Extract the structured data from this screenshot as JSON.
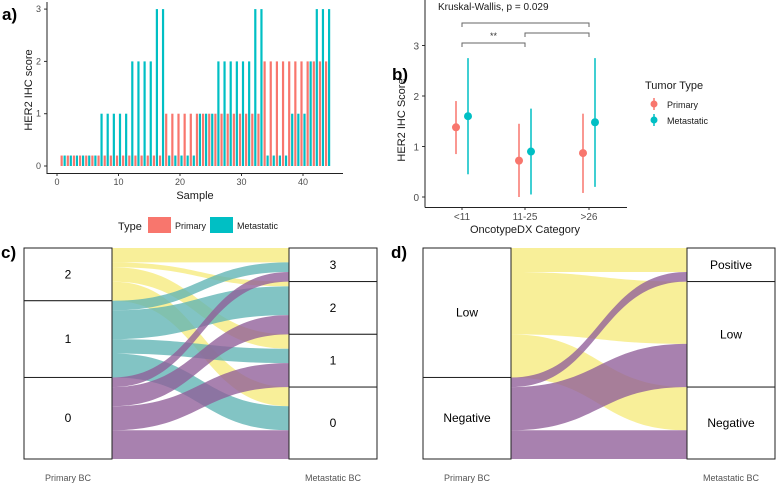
{
  "colors": {
    "primary": "#F8766D",
    "metastatic": "#00BFC4",
    "yellow": "#F6EB7C",
    "teal": "#5FB4B3",
    "purple": "#8F5E99"
  },
  "panel_labels": [
    "a)",
    "b)",
    "c)",
    "d)"
  ],
  "chart_data": [
    {
      "type": "bar",
      "id": "a",
      "xlabel": "Sample",
      "ylabel": "HER2 IHC score",
      "xticks": [
        "0",
        "10",
        "20",
        "30",
        "40"
      ],
      "yticks": [
        "0",
        "1",
        "2",
        "3"
      ],
      "ylim": [
        0,
        3
      ],
      "zero_stub": 0.2,
      "legend": {
        "title": "Type",
        "placement": "bottom",
        "entries": [
          "Primary",
          "Metastatic"
        ]
      },
      "x": [
        1,
        2,
        3,
        4,
        5,
        6,
        7,
        8,
        9,
        10,
        11,
        12,
        13,
        14,
        15,
        16,
        17,
        18,
        19,
        20,
        21,
        22,
        23,
        24,
        25,
        26,
        27,
        28,
        29,
        30,
        31,
        32,
        33,
        34,
        35,
        36,
        37,
        38,
        39,
        40,
        41,
        42,
        43,
        44
      ],
      "series": [
        {
          "name": "Primary",
          "values": [
            0,
            0,
            0,
            0,
            0,
            0,
            0,
            0,
            0,
            0,
            0,
            0,
            0,
            0,
            0,
            0,
            0,
            1,
            1,
            1,
            1,
            1,
            1,
            1,
            1,
            1,
            1,
            1,
            1,
            1,
            1,
            1,
            1,
            2,
            2,
            2,
            2,
            2,
            2,
            2,
            2,
            2,
            2,
            2
          ]
        },
        {
          "name": "Metastatic",
          "values": [
            0,
            0,
            0,
            0,
            0,
            0,
            1,
            1,
            1,
            1,
            1,
            2,
            2,
            2,
            2,
            3,
            3,
            0,
            0,
            0,
            0,
            0,
            1,
            1,
            1,
            2,
            2,
            2,
            2,
            2,
            2,
            3,
            3,
            0,
            0,
            0,
            0,
            1,
            1,
            1,
            2,
            3,
            3,
            3
          ]
        }
      ]
    },
    {
      "type": "scatter",
      "id": "b",
      "title": "Kruskal-Wallis, p = 0.029",
      "xlabel": "OncotypeDX Category",
      "ylabel": "HER2 IHC Score",
      "categories": [
        "<11",
        "11-25",
        ">26"
      ],
      "yticks": [
        "0",
        "1",
        "2",
        "3"
      ],
      "ylim": [
        0,
        3
      ],
      "significance": {
        "label": "**",
        "brackets": [
          [
            "<11",
            ">26"
          ],
          [
            "11-25",
            ">26"
          ],
          [
            "<11",
            "11-25"
          ]
        ]
      },
      "legend": {
        "title": "Tumor Type",
        "placement": "right",
        "entries": [
          "Primary",
          "Metastatic"
        ]
      },
      "series": [
        {
          "name": "Primary",
          "mean": [
            1.38,
            0.72,
            0.87
          ],
          "lower": [
            0.85,
            0.0,
            0.08
          ],
          "upper": [
            1.9,
            1.45,
            1.65
          ]
        },
        {
          "name": "Metastatic",
          "mean": [
            1.6,
            0.9,
            1.48
          ],
          "lower": [
            0.45,
            0.05,
            0.2
          ],
          "upper": [
            2.75,
            1.75,
            2.75
          ]
        }
      ]
    },
    {
      "type": "alluvial",
      "id": "c",
      "left_label": "Primary BC",
      "right_label": "Metastatic BC",
      "left_nodes": [
        "2",
        "1",
        "0"
      ],
      "right_nodes": [
        "3",
        "2",
        "1",
        "0"
      ],
      "left_colors": [
        "yellow",
        "teal",
        "purple"
      ],
      "flows": [
        {
          "from": "2",
          "to": "3",
          "n": 3
        },
        {
          "from": "2",
          "to": "2",
          "n": 1
        },
        {
          "from": "2",
          "to": "1",
          "n": 3
        },
        {
          "from": "2",
          "to": "0",
          "n": 4
        },
        {
          "from": "1",
          "to": "3",
          "n": 2
        },
        {
          "from": "1",
          "to": "2",
          "n": 6
        },
        {
          "from": "1",
          "to": "1",
          "n": 3
        },
        {
          "from": "1",
          "to": "0",
          "n": 5
        },
        {
          "from": "0",
          "to": "3",
          "n": 2
        },
        {
          "from": "0",
          "to": "2",
          "n": 4
        },
        {
          "from": "0",
          "to": "1",
          "n": 5
        },
        {
          "from": "0",
          "to": "0",
          "n": 6
        }
      ]
    },
    {
      "type": "alluvial",
      "id": "d",
      "left_label": "Primary BC",
      "right_label": "Metastatic BC",
      "left_nodes": [
        "Low",
        "Negative"
      ],
      "right_nodes": [
        "Positive",
        "Low",
        "Negative"
      ],
      "left_colors": [
        "yellow",
        "purple"
      ],
      "flows": [
        {
          "from": "Low",
          "to": "Positive",
          "n": 5
        },
        {
          "from": "Low",
          "to": "Low",
          "n": 13
        },
        {
          "from": "Low",
          "to": "Negative",
          "n": 9
        },
        {
          "from": "Negative",
          "to": "Positive",
          "n": 2
        },
        {
          "from": "Negative",
          "to": "Low",
          "n": 9
        },
        {
          "from": "Negative",
          "to": "Negative",
          "n": 6
        }
      ]
    }
  ]
}
